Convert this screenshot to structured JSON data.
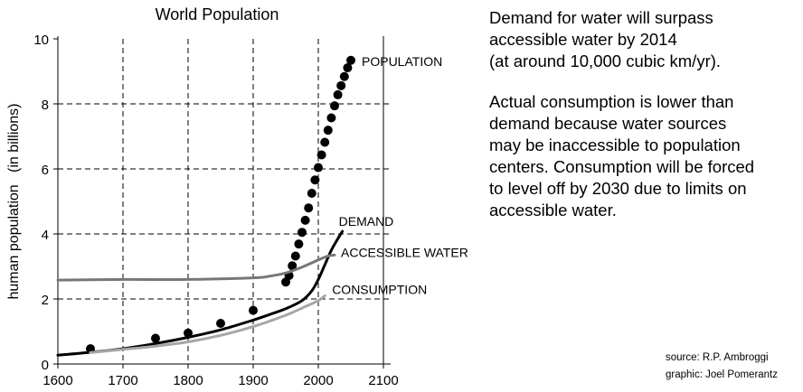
{
  "chart_data": {
    "type": "line",
    "title": "World Population",
    "xlabel": "",
    "ylabel": "human population   (in billions)",
    "xlim": [
      1600,
      2100
    ],
    "ylim": [
      0,
      10
    ],
    "xticks": [
      1600,
      1700,
      1800,
      1900,
      2000,
      2100
    ],
    "yticks": [
      0,
      2,
      4,
      6,
      8,
      10
    ],
    "grid": true,
    "series": [
      {
        "name": "POPULATION",
        "style": "dots",
        "color": "#000000",
        "x": [
          1650,
          1750,
          1800,
          1850,
          1900,
          1950,
          1955,
          1960,
          1965,
          1970,
          1975,
          1980,
          1985,
          1990,
          1995,
          2000,
          2005,
          2010,
          2015,
          2020,
          2025,
          2030,
          2035,
          2040,
          2045,
          2050
        ],
        "y": [
          0.47,
          0.79,
          0.95,
          1.25,
          1.65,
          2.52,
          2.72,
          3.02,
          3.32,
          3.69,
          4.05,
          4.42,
          4.8,
          5.25,
          5.66,
          6.04,
          6.43,
          6.82,
          7.19,
          7.57,
          7.94,
          8.28,
          8.56,
          8.84,
          9.11,
          9.34
        ]
      },
      {
        "name": "DEMAND",
        "style": "line",
        "color": "#000000",
        "x": [
          1600,
          1650,
          1700,
          1750,
          1800,
          1850,
          1900,
          1925,
          1950,
          1975,
          1990,
          2000,
          2010,
          2020,
          2030,
          2037
        ],
        "y": [
          0.27,
          0.36,
          0.47,
          0.63,
          0.82,
          1.05,
          1.35,
          1.52,
          1.7,
          1.95,
          2.25,
          2.6,
          3.05,
          3.5,
          3.85,
          4.08
        ]
      },
      {
        "name": "ACCESSIBLE WATER",
        "style": "line",
        "color": "#777777",
        "x": [
          1600,
          1700,
          1800,
          1900,
          1925,
          1950,
          1975,
          2000,
          2015,
          2025
        ],
        "y": [
          2.58,
          2.6,
          2.6,
          2.65,
          2.7,
          2.8,
          2.98,
          3.2,
          3.32,
          3.35
        ]
      },
      {
        "name": "CONSUMPTION",
        "style": "line",
        "color": "#a6a6a6",
        "x": [
          1650,
          1700,
          1750,
          1800,
          1850,
          1900,
          1950,
          1975,
          2000,
          2010
        ],
        "y": [
          0.35,
          0.45,
          0.55,
          0.68,
          0.88,
          1.15,
          1.5,
          1.72,
          1.95,
          2.1
        ]
      }
    ]
  },
  "notes": {
    "line1": "Demand for water will surpass",
    "line2": "accessible water by 2014",
    "line3": "(at around 10,000 cubic km/yr).",
    "line4": "Actual consumption is lower than",
    "line5": "demand because water sources",
    "line6": "may be inaccessible to population",
    "line7": "centers. Consumption will be forced",
    "line8": "to level off by 2030 due to limits on",
    "line9": "accessible water."
  },
  "credits": {
    "source": "source: R.P. Ambroggi",
    "graphic": "graphic: Joel Pomerantz"
  }
}
